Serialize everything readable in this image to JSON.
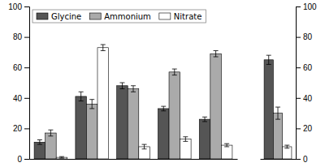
{
  "chart_data": [
    {
      "type": "bar",
      "categories": [
        null,
        null,
        null,
        null,
        null
      ],
      "series": [
        {
          "name": "Glycine",
          "color": "#555555",
          "values": [
            11,
            41,
            48,
            33,
            26
          ],
          "errors": [
            1.5,
            3,
            2,
            1.5,
            1.5
          ]
        },
        {
          "name": "Ammonium",
          "color": "#aaaaaa",
          "values": [
            17,
            36,
            46,
            57,
            69
          ],
          "errors": [
            2,
            3,
            2,
            2,
            2
          ]
        },
        {
          "name": "Nitrate",
          "color": "#ffffff",
          "values": [
            1,
            73,
            8,
            13,
            9
          ],
          "errors": [
            0.5,
            2,
            1.5,
            1.5,
            1
          ]
        }
      ],
      "ylim": [
        0,
        100
      ],
      "yticks": [
        0,
        20,
        40,
        60,
        80,
        100
      ],
      "grid": false,
      "legend": "upper left",
      "tick_labels": "y"
    },
    {
      "type": "bar",
      "categories": [
        null
      ],
      "series": [
        {
          "color": "#555555",
          "values": [
            65
          ],
          "errors": [
            3
          ]
        },
        {
          "color": "#aaaaaa",
          "values": [
            30
          ],
          "errors": [
            4
          ]
        },
        {
          "color": "#ffffff",
          "values": [
            8
          ],
          "errors": [
            1
          ]
        }
      ],
      "ylim": [
        0,
        100
      ],
      "yticks": [
        0,
        20,
        40,
        60,
        80,
        100
      ],
      "grid": false,
      "tick_labels": "y"
    }
  ]
}
